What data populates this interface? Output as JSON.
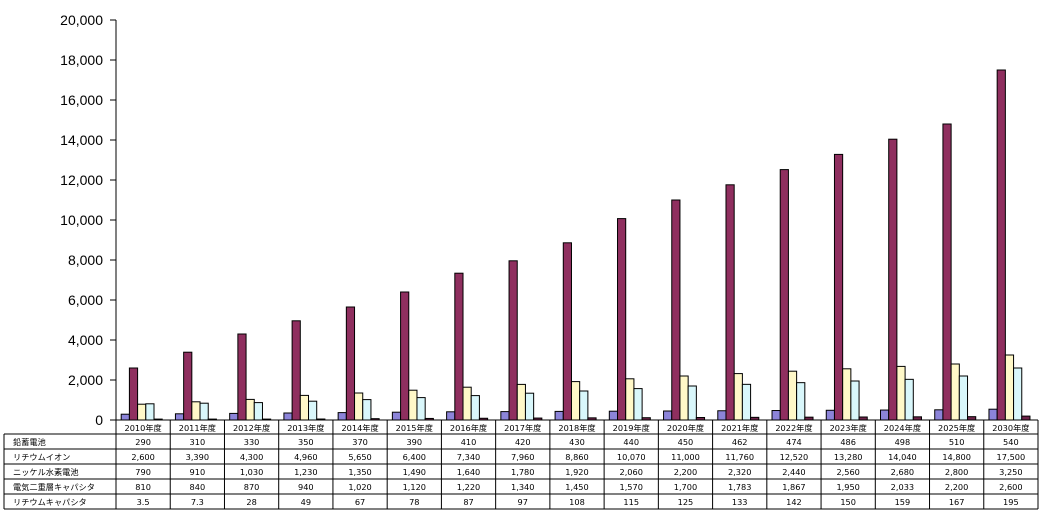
{
  "chart_data": {
    "type": "bar",
    "title": "",
    "xlabel": "",
    "ylabel": "",
    "ylim": [
      0,
      20000
    ],
    "y_ticks": [
      "0",
      "2,000",
      "4,000",
      "6,000",
      "8,000",
      "10,000",
      "12,000",
      "14,000",
      "16,000",
      "18,000",
      "20,000"
    ],
    "categories": [
      "2010年度",
      "2011年度",
      "2012年度",
      "2013年度",
      "2014年度",
      "2015年度",
      "2016年度",
      "2017年度",
      "2018年度",
      "2019年度",
      "2020年度",
      "2021年度",
      "2022年度",
      "2023年度",
      "2024年度",
      "2025年度",
      "2030年度"
    ],
    "series": [
      {
        "name": "鉛蓄電池",
        "color": "#8c84d9",
        "values": [
          290,
          310,
          330,
          350,
          370,
          390,
          410,
          420,
          430,
          440,
          450,
          462,
          474,
          486,
          498,
          510,
          540
        ],
        "display": [
          "290",
          "310",
          "330",
          "350",
          "370",
          "390",
          "410",
          "420",
          "430",
          "440",
          "450",
          "462",
          "474",
          "486",
          "498",
          "510",
          "540"
        ]
      },
      {
        "name": "リチウムイオン",
        "color": "#8f2f5f",
        "values": [
          2600,
          3390,
          4300,
          4960,
          5650,
          6400,
          7340,
          7960,
          8860,
          10070,
          11000,
          11760,
          12520,
          13280,
          14040,
          14800,
          17500
        ],
        "display": [
          "2,600",
          "3,390",
          "4,300",
          "4,960",
          "5,650",
          "6,400",
          "7,340",
          "7,960",
          "8,860",
          "10,070",
          "11,000",
          "11,760",
          "12,520",
          "13,280",
          "14,040",
          "14,800",
          "17,500"
        ]
      },
      {
        "name": "ニッケル水素電池",
        "color": "#fff8c8",
        "values": [
          790,
          910,
          1030,
          1230,
          1350,
          1490,
          1640,
          1780,
          1920,
          2060,
          2200,
          2320,
          2440,
          2560,
          2680,
          2800,
          3250
        ],
        "display": [
          "790",
          "910",
          "1,030",
          "1,230",
          "1,350",
          "1,490",
          "1,640",
          "1,780",
          "1,920",
          "2,060",
          "2,200",
          "2,320",
          "2,440",
          "2,560",
          "2,680",
          "2,800",
          "3,250"
        ]
      },
      {
        "name": "電気二重層キャパシタ",
        "color": "#d9f7fb",
        "values": [
          810,
          840,
          870,
          940,
          1020,
          1120,
          1220,
          1340,
          1450,
          1570,
          1700,
          1783,
          1867,
          1950,
          2033,
          2200,
          2600
        ],
        "display": [
          "810",
          "840",
          "870",
          "940",
          "1,020",
          "1,120",
          "1,220",
          "1,340",
          "1,450",
          "1,570",
          "1,700",
          "1,783",
          "1,867",
          "1,950",
          "2,033",
          "2,200",
          "2,600"
        ]
      },
      {
        "name": "リチウムキャパシタ",
        "color": "#6d2349",
        "values": [
          3.5,
          7.3,
          28,
          49,
          67,
          78,
          87,
          97,
          108,
          115,
          125,
          133,
          142,
          150,
          159,
          167,
          195
        ],
        "display": [
          "3.5",
          "7.3",
          "28",
          "49",
          "67",
          "78",
          "87",
          "97",
          "108",
          "115",
          "125",
          "133",
          "142",
          "150",
          "159",
          "167",
          "195"
        ]
      }
    ],
    "grid": false,
    "legend": "data-table"
  }
}
